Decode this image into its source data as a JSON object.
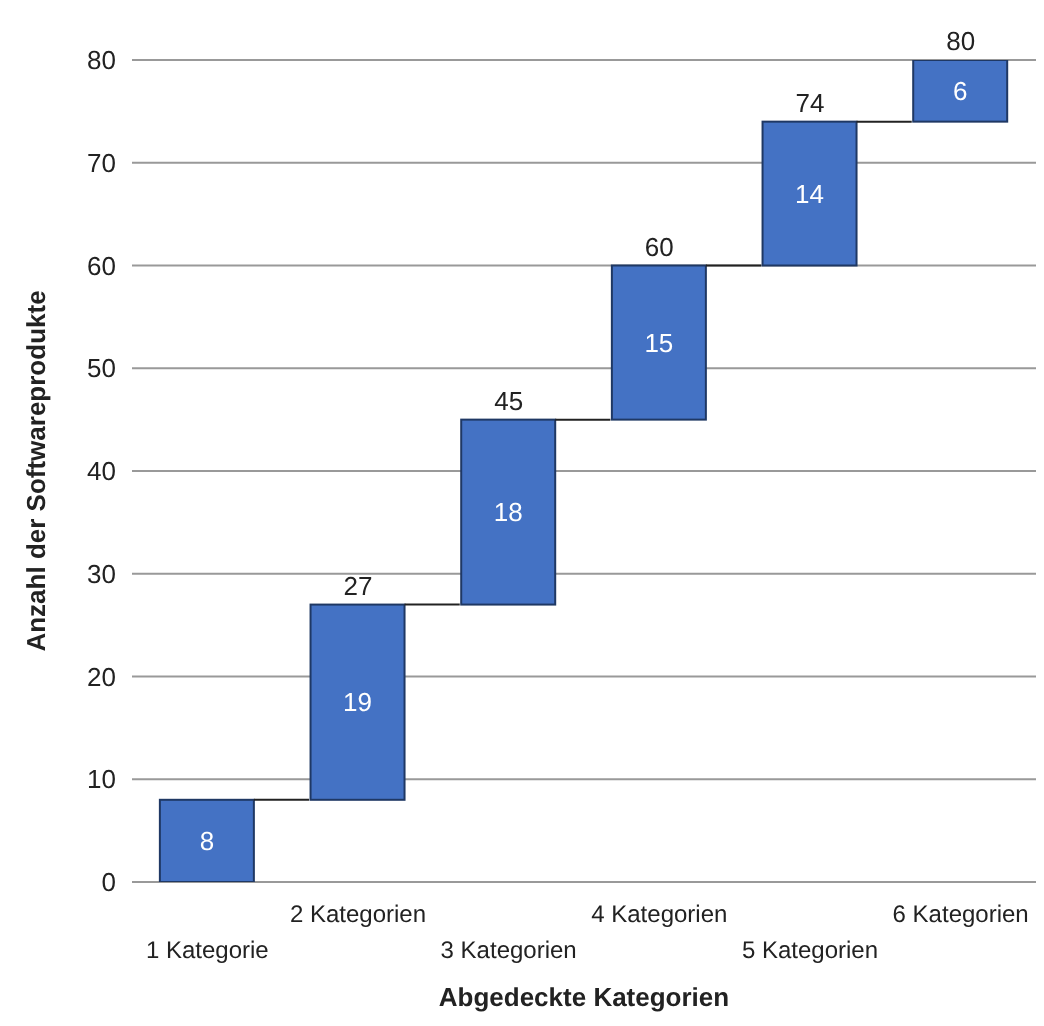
{
  "chart_data": {
    "type": "bar",
    "xlabel": "Abgedeckte Kategorien",
    "ylabel": "Anzahl der Softwareprodukte",
    "categories": [
      "1 Kategorie",
      "2 Kategorien",
      "3 Kategorien",
      "4 Kategorien",
      "5 Kategorien",
      "6 Kategorien"
    ],
    "values": [
      8,
      19,
      18,
      15,
      14,
      6
    ],
    "base": [
      0,
      8,
      27,
      45,
      60,
      74
    ],
    "color": "#4472c4",
    "data_labels": true,
    "annotations": [
      {
        "text": "27",
        "x": "2 Kategorien",
        "y": 27
      },
      {
        "text": "45",
        "x": "3 Kategorien",
        "y": 45
      },
      {
        "text": "60",
        "x": "4 Kategorien",
        "y": 60
      },
      {
        "text": "74",
        "x": "5 Kategorien",
        "y": 74
      },
      {
        "text": "80",
        "x": "6 Kategorien",
        "y": 80
      }
    ],
    "ylim": [
      0,
      80
    ],
    "yticks": [
      0,
      10,
      20,
      30,
      40,
      50,
      60,
      70,
      80
    ],
    "grid": "y",
    "legend": false
  }
}
